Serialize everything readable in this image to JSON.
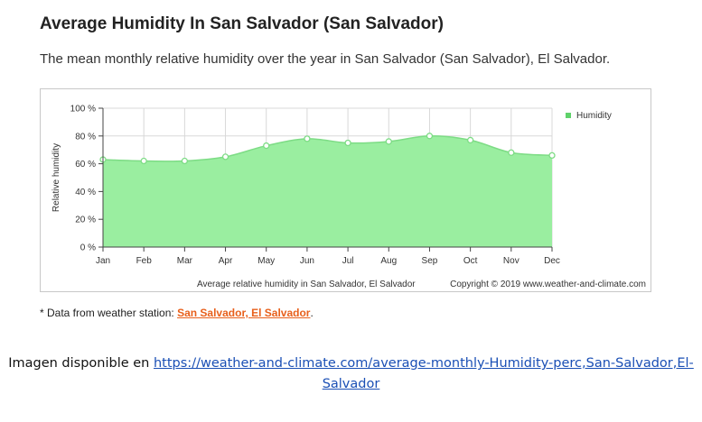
{
  "page": {
    "title": "Average Humidity In San Salvador (San Salvador)",
    "subtitle": "The mean monthly relative humidity over the year in San Salvador (San Salvador), El Salvador.",
    "note_prefix": "* Data from weather station: ",
    "note_link": "San Salvador, El Salvador",
    "note_suffix": ".",
    "source_prefix": "Imagen disponible en ",
    "source_link": "https://weather-and-climate.com/average-monthly-Humidity-perc,San-Salvador,El-Salvador"
  },
  "colors": {
    "area_fill": "#9aeea0",
    "area_line": "#7ddc85",
    "legend_swatch": "#5fd26a",
    "note_link": "#e8601c",
    "source_link": "#1a4fb5"
  },
  "chart_data": {
    "type": "area",
    "title": "",
    "xlabel": "",
    "ylabel": "Relative humidity",
    "categories": [
      "Jan",
      "Feb",
      "Mar",
      "Apr",
      "May",
      "Jun",
      "Jul",
      "Aug",
      "Sep",
      "Oct",
      "Nov",
      "Dec"
    ],
    "series": [
      {
        "name": "Humidity",
        "values": [
          63,
          62,
          62,
          65,
          73,
          78,
          75,
          76,
          80,
          77,
          68,
          66
        ]
      }
    ],
    "ylim": [
      0,
      100
    ],
    "yticks": [
      "0 %",
      "20 %",
      "40 %",
      "60 %",
      "80 %",
      "100 %"
    ],
    "grid": true,
    "legend": "top-right",
    "caption": "Average relative humidity in San Salvador, El Salvador",
    "copyright": "Copyright © 2019 www.weather-and-climate.com"
  }
}
